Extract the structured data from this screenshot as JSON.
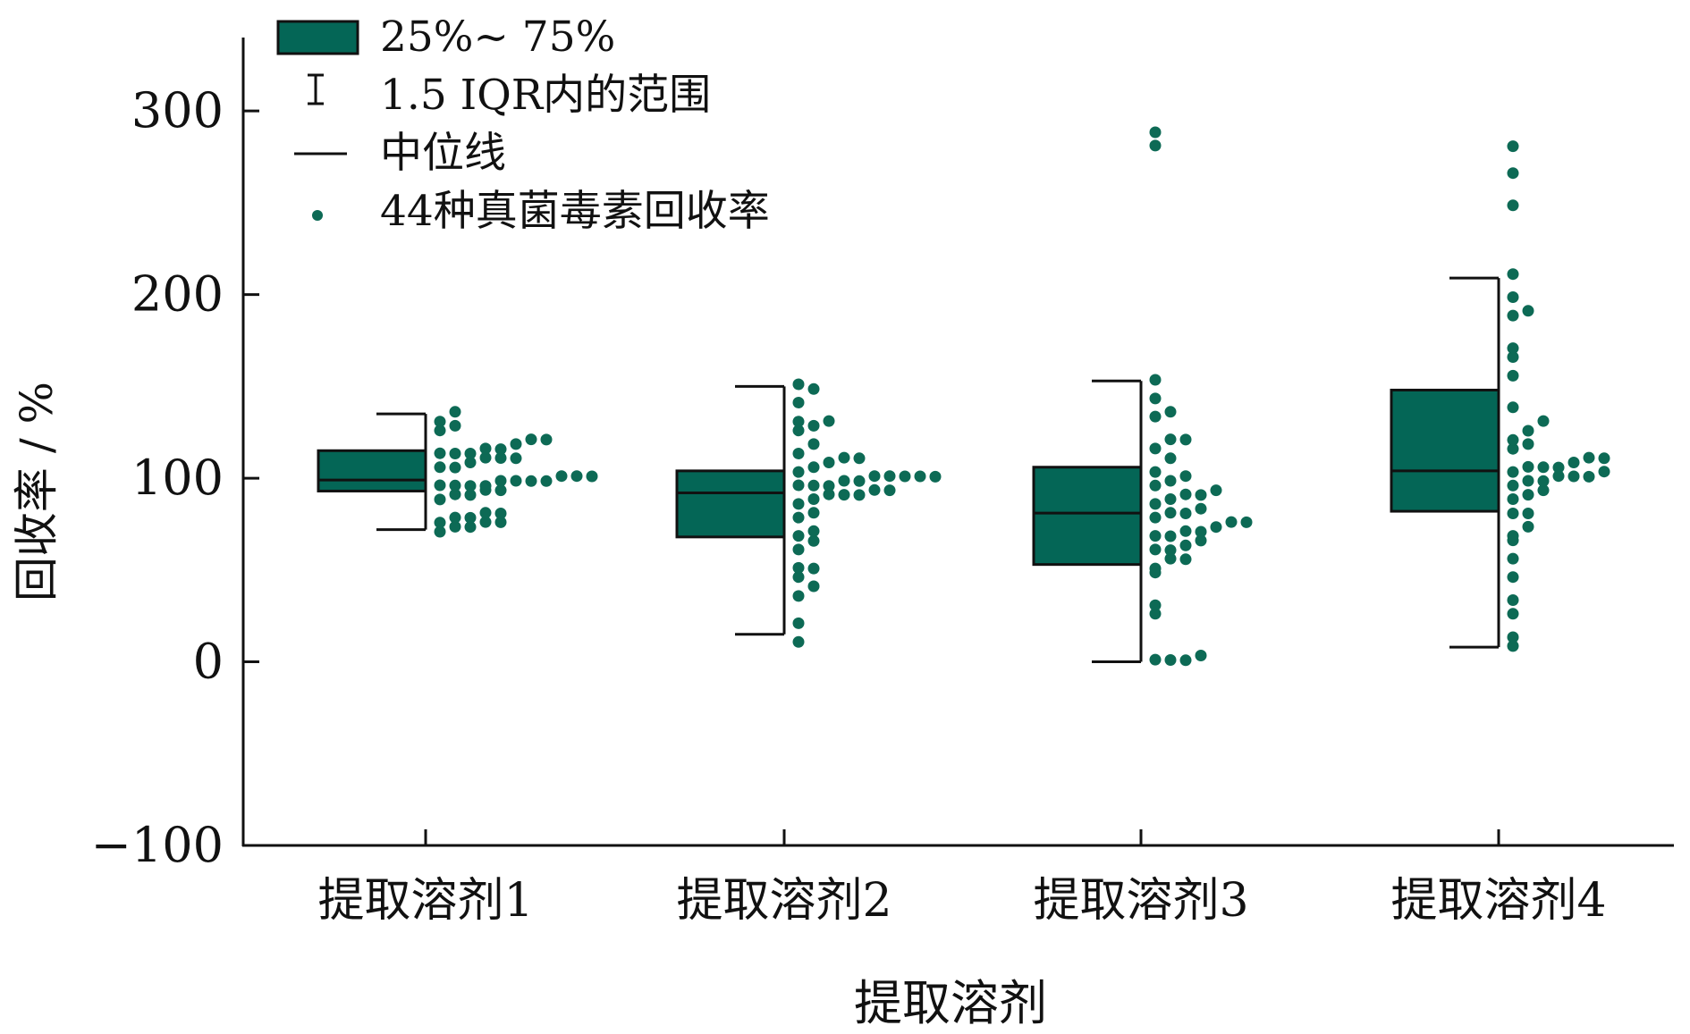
{
  "colors": {
    "box_fill": "#046656",
    "points": "#0d6a55",
    "ink": "#111111"
  },
  "legend": {
    "placement": "top-left",
    "items": [
      {
        "icon": "box-icon",
        "label": "25%~ 75%"
      },
      {
        "icon": "whisker-icon",
        "label": "1.5 IQR内的范围"
      },
      {
        "icon": "median-line-icon",
        "label": "中位线"
      },
      {
        "icon": "point-icon",
        "label": "44种真菌毒素回收率"
      }
    ]
  },
  "chart_data": {
    "type": "box",
    "xlabel": "提取溶剂",
    "ylabel": "回收率 / %",
    "ylim": [
      -100,
      340
    ],
    "yticks": [
      -100,
      0,
      100,
      200,
      300
    ],
    "grid": false,
    "categories": [
      "提取溶剂1",
      "提取溶剂2",
      "提取溶剂3",
      "提取溶剂4"
    ],
    "boxes": [
      {
        "q1": 93,
        "median": 99,
        "q3": 115,
        "whisker_low": 72,
        "whisker_high": 135
      },
      {
        "q1": 68,
        "median": 92,
        "q3": 104,
        "whisker_low": 15,
        "whisker_high": 150
      },
      {
        "q1": 53,
        "median": 81,
        "q3": 106,
        "whisker_low": 0,
        "whisker_high": 153
      },
      {
        "q1": 82,
        "median": 104,
        "q3": 148,
        "whisker_low": 8,
        "whisker_high": 209
      }
    ],
    "points": [
      [
        72,
        73,
        74,
        75,
        76,
        77,
        78,
        79,
        80,
        82,
        89,
        90,
        92,
        93,
        94,
        95,
        96,
        97,
        97,
        98,
        98,
        99,
        99,
        100,
        100,
        101,
        106,
        107,
        108,
        110,
        111,
        112,
        113,
        114,
        114,
        115,
        117,
        118,
        120,
        121,
        126,
        128,
        132,
        135
      ],
      [
        12,
        21,
        37,
        40,
        45,
        50,
        52,
        60,
        67,
        68,
        70,
        78,
        80,
        86,
        88,
        90,
        91,
        92,
        93,
        94,
        95,
        96,
        97,
        98,
        99,
        100,
        100,
        101,
        101,
        102,
        104,
        106,
        108,
        110,
        112,
        114,
        118,
        126,
        128,
        130,
        132,
        140,
        148,
        150
      ],
      [
        0,
        1,
        2,
        4,
        25,
        32,
        48,
        52,
        55,
        57,
        60,
        62,
        64,
        66,
        68,
        69,
        70,
        72,
        74,
        75,
        76,
        78,
        80,
        82,
        84,
        86,
        88,
        90,
        92,
        94,
        96,
        98,
        100,
        104,
        112,
        115,
        120,
        121,
        133,
        135,
        144,
        153,
        280,
        289
      ],
      [
        8,
        14,
        25,
        33,
        45,
        55,
        65,
        68,
        73,
        82,
        82,
        88,
        91,
        94,
        96,
        98,
        99,
        100,
        101,
        102,
        103,
        104,
        105,
        106,
        107,
        108,
        110,
        112,
        116,
        118,
        122,
        127,
        130,
        138,
        157,
        166,
        172,
        188,
        190,
        198,
        210,
        248,
        265,
        282
      ]
    ]
  }
}
